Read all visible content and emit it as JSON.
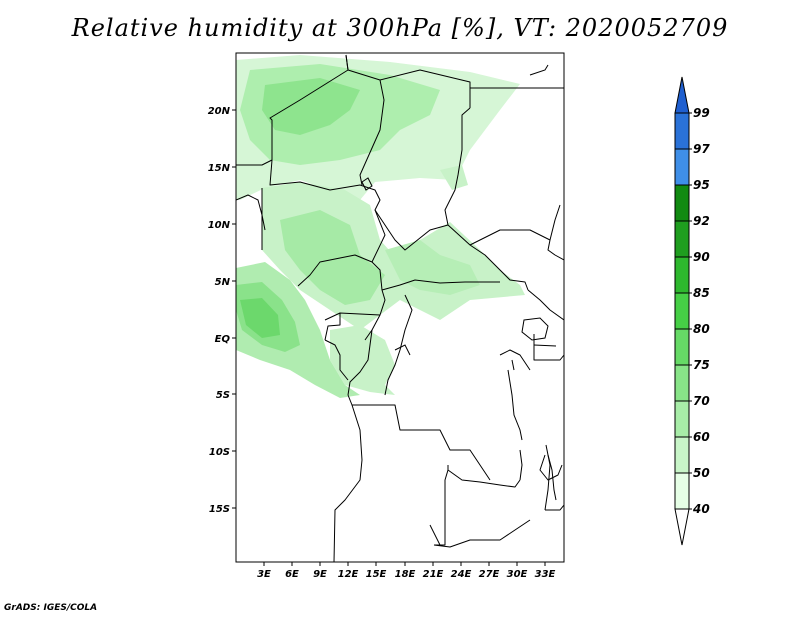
{
  "title": "Relative humidity at 300hPa [%], VT: 2020052709",
  "credit": "GrADS: IGES/COLA",
  "lat_labels": [
    "20N",
    "15N",
    "10N",
    "5N",
    "EQ",
    "5S",
    "10S",
    "15S"
  ],
  "lon_labels": [
    "3E",
    "6E",
    "9E",
    "12E",
    "15E",
    "18E",
    "21E",
    "24E",
    "27E",
    "30E",
    "33E"
  ],
  "colorbar": {
    "levels": [
      "40",
      "50",
      "60",
      "70",
      "75",
      "80",
      "85",
      "90",
      "92",
      "95",
      "97",
      "99"
    ],
    "colors": [
      "#ffffff",
      "#e6ffe6",
      "#c8f5c8",
      "#a8eda8",
      "#88e488",
      "#66da66",
      "#46cf46",
      "#2eb82e",
      "#1f9e1f",
      "#118a11",
      "#3f8fe8",
      "#2a72d8",
      "#1f5fcf"
    ]
  }
}
